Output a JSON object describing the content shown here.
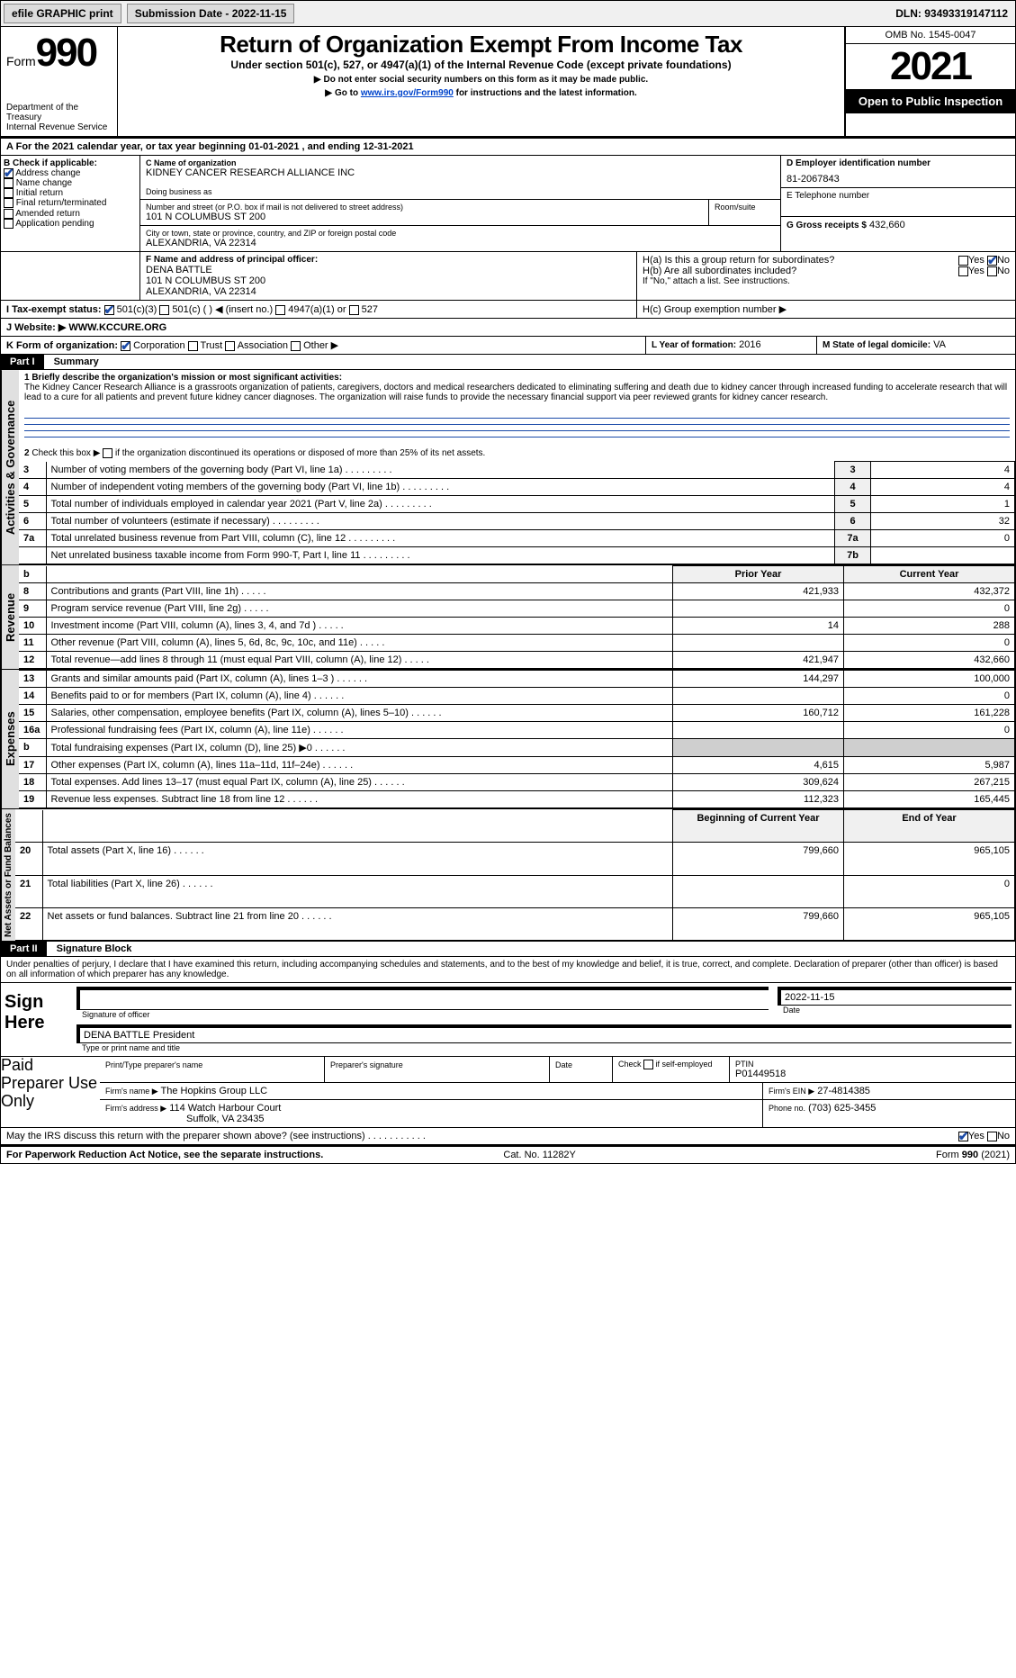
{
  "topbar": {
    "efile_lbl": "efile GRAPHIC print",
    "submission_lbl": "Submission Date - 2022-11-15",
    "dln_lbl": "DLN: 93493319147112"
  },
  "header": {
    "form_word": "Form",
    "form_num": "990",
    "dept": "Department of the Treasury",
    "irs": "Internal Revenue Service",
    "title": "Return of Organization Exempt From Income Tax",
    "subtitle": "Under section 501(c), 527, or 4947(a)(1) of the Internal Revenue Code (except private foundations)",
    "note1": "Do not enter social security numbers on this form as it may be made public.",
    "note2_pre": "Go to ",
    "note2_link": "www.irs.gov/Form990",
    "note2_post": " for instructions and the latest information.",
    "omb": "OMB No. 1545-0047",
    "year": "2021",
    "open": "Open to Public Inspection"
  },
  "lineA": {
    "text": "For the 2021 calendar year, or tax year beginning 01-01-2021   , and ending 12-31-2021"
  },
  "blockB": {
    "lbl": "B Check if applicable:",
    "items": [
      "Address change",
      "Name change",
      "Initial return",
      "Final return/terminated",
      "Amended return",
      "Application pending"
    ],
    "checked": [
      true,
      false,
      false,
      false,
      false,
      false
    ]
  },
  "blockC": {
    "name_lbl": "C Name of organization",
    "name": "KIDNEY CANCER RESEARCH ALLIANCE INC",
    "dba_lbl": "Doing business as",
    "dba": "",
    "street_lbl": "Number and street (or P.O. box if mail is not delivered to street address)",
    "suite_lbl": "Room/suite",
    "street": "101 N COLUMBUS ST 200",
    "city_lbl": "City or town, state or province, country, and ZIP or foreign postal code",
    "city": "ALEXANDRIA, VA  22314"
  },
  "blockD": {
    "lbl": "D Employer identification number",
    "val": "81-2067843"
  },
  "blockE": {
    "lbl": "E Telephone number",
    "val": ""
  },
  "blockG": {
    "lbl": "G Gross receipts $",
    "val": "432,660"
  },
  "blockF": {
    "lbl": "F  Name and address of principal officer:",
    "name": "DENA BATTLE",
    "addr1": "101 N COLUMBUS ST 200",
    "addr2": "ALEXANDRIA, VA  22314"
  },
  "blockH": {
    "a_lbl": "H(a)  Is this a group return for subordinates?",
    "b_lbl": "H(b)  Are all subordinates included?",
    "b_note": "If \"No,\" attach a list. See instructions.",
    "c_lbl": "H(c)  Group exemption number ▶",
    "yes": "Yes",
    "no": "No",
    "a_checked": "no"
  },
  "blockI": {
    "lbl": "I  Tax-exempt status:",
    "opts": [
      "501(c)(3)",
      "501(c) (  ) ◀ (insert no.)",
      "4947(a)(1) or",
      "527"
    ],
    "checked": 0
  },
  "blockJ": {
    "lbl": "J  Website: ▶",
    "val": "WWW.KCCURE.ORG"
  },
  "blockK": {
    "lbl": "K Form of organization:",
    "opts": [
      "Corporation",
      "Trust",
      "Association",
      "Other ▶"
    ],
    "checked": 0
  },
  "blockL": {
    "lbl": "L Year of formation:",
    "val": "2016"
  },
  "blockM": {
    "lbl": "M State of legal domicile:",
    "val": "VA"
  },
  "part1": {
    "label": "Part I",
    "title": "Summary"
  },
  "summary": {
    "q1_lbl": "1  Briefly describe the organization's mission or most significant activities:",
    "q1_text": "The Kidney Cancer Research Alliance is a grassroots organization of patients, caregivers, doctors and medical researchers dedicated to eliminating suffering and death due to kidney cancer through increased funding to accelerate research that will lead to a cure for all patients and prevent future kidney cancer diagnoses. The organization will raise funds to provide the necessary financial support via peer reviewed grants for kidney cancer research.",
    "q2_lbl": "2   Check this box ▶        if the organization discontinued its operations or disposed of more than 25% of its net assets."
  },
  "sidelabels": {
    "gov": "Activities & Governance",
    "rev": "Revenue",
    "exp": "Expenses",
    "net": "Net Assets or Fund Balances"
  },
  "govlines": [
    {
      "n": "3",
      "t": "Number of voting members of the governing body (Part VI, line 1a)",
      "c": "3",
      "v": "4"
    },
    {
      "n": "4",
      "t": "Number of independent voting members of the governing body (Part VI, line 1b)",
      "c": "4",
      "v": "4"
    },
    {
      "n": "5",
      "t": "Total number of individuals employed in calendar year 2021 (Part V, line 2a)",
      "c": "5",
      "v": "1"
    },
    {
      "n": "6",
      "t": "Total number of volunteers (estimate if necessary)",
      "c": "6",
      "v": "32"
    },
    {
      "n": "7a",
      "t": "Total unrelated business revenue from Part VIII, column (C), line 12",
      "c": "7a",
      "v": "0"
    },
    {
      "n": "",
      "t": "Net unrelated business taxable income from Form 990-T, Part I, line 11",
      "c": "7b",
      "v": ""
    }
  ],
  "cols": {
    "prior": "Prior Year",
    "current": "Current Year",
    "boy": "Beginning of Current Year",
    "eoy": "End of Year"
  },
  "revlines": [
    {
      "n": "b",
      "t": "",
      "p": "",
      "c": "",
      "shade": true
    },
    {
      "n": "8",
      "t": "Contributions and grants (Part VIII, line 1h)",
      "p": "421,933",
      "c": "432,372"
    },
    {
      "n": "9",
      "t": "Program service revenue (Part VIII, line 2g)",
      "p": "",
      "c": "0"
    },
    {
      "n": "10",
      "t": "Investment income (Part VIII, column (A), lines 3, 4, and 7d )",
      "p": "14",
      "c": "288"
    },
    {
      "n": "11",
      "t": "Other revenue (Part VIII, column (A), lines 5, 6d, 8c, 9c, 10c, and 11e)",
      "p": "",
      "c": "0"
    },
    {
      "n": "12",
      "t": "Total revenue—add lines 8 through 11 (must equal Part VIII, column (A), line 12)",
      "p": "421,947",
      "c": "432,660"
    }
  ],
  "explines": [
    {
      "n": "13",
      "t": "Grants and similar amounts paid (Part IX, column (A), lines 1–3 )",
      "p": "144,297",
      "c": "100,000"
    },
    {
      "n": "14",
      "t": "Benefits paid to or for members (Part IX, column (A), line 4)",
      "p": "",
      "c": "0"
    },
    {
      "n": "15",
      "t": "Salaries, other compensation, employee benefits (Part IX, column (A), lines 5–10)",
      "p": "160,712",
      "c": "161,228"
    },
    {
      "n": "16a",
      "t": "Professional fundraising fees (Part IX, column (A), line 11e)",
      "p": "",
      "c": "0"
    },
    {
      "n": "b",
      "t": "Total fundraising expenses (Part IX, column (D), line 25) ▶0",
      "p": "",
      "c": "",
      "shade": true
    },
    {
      "n": "17",
      "t": "Other expenses (Part IX, column (A), lines 11a–11d, 11f–24e)",
      "p": "4,615",
      "c": "5,987"
    },
    {
      "n": "18",
      "t": "Total expenses. Add lines 13–17 (must equal Part IX, column (A), line 25)",
      "p": "309,624",
      "c": "267,215"
    },
    {
      "n": "19",
      "t": "Revenue less expenses. Subtract line 18 from line 12",
      "p": "112,323",
      "c": "165,445"
    }
  ],
  "netlines": [
    {
      "n": "",
      "t": "",
      "p": "",
      "c": "",
      "header": true
    },
    {
      "n": "20",
      "t": "Total assets (Part X, line 16)",
      "p": "799,660",
      "c": "965,105"
    },
    {
      "n": "21",
      "t": "Total liabilities (Part X, line 26)",
      "p": "",
      "c": "0"
    },
    {
      "n": "22",
      "t": "Net assets or fund balances. Subtract line 21 from line 20",
      "p": "799,660",
      "c": "965,105"
    }
  ],
  "part2": {
    "label": "Part II",
    "title": "Signature Block"
  },
  "sig": {
    "decl": "Under penalties of perjury, I declare that I have examined this return, including accompanying schedules and statements, and to the best of my knowledge and belief, it is true, correct, and complete. Declaration of preparer (other than officer) is based on all information of which preparer has any knowledge.",
    "sign_here": "Sign Here",
    "sig_officer": "Signature of officer",
    "date_lbl": "Date",
    "date": "2022-11-15",
    "name_title_lbl": "Type or print name and title",
    "name_title": "DENA BATTLE  President",
    "paid": "Paid Preparer Use Only",
    "prt_name_lbl": "Print/Type preparer's name",
    "prep_sig_lbl": "Preparer's signature",
    "check_self": "Check         if self-employed",
    "ptin_lbl": "PTIN",
    "ptin": "P01449518",
    "firm_name_lbl": "Firm's name    ▶",
    "firm_name": "The Hopkins Group LLC",
    "firm_ein_lbl": "Firm's EIN ▶",
    "firm_ein": "27-4814385",
    "firm_addr_lbl": "Firm's address ▶",
    "firm_addr1": "114 Watch Harbour Court",
    "firm_addr2": "Suffolk, VA  23435",
    "phone_lbl": "Phone no.",
    "phone": "(703) 625-3455",
    "may_irs": "May the IRS discuss this return with the preparer shown above? (see instructions)",
    "may_yes": true
  },
  "footer": {
    "left": "For Paperwork Reduction Act Notice, see the separate instructions.",
    "mid": "Cat. No. 11282Y",
    "right": "Form 990 (2021)"
  },
  "colors": {
    "link": "#0044cc",
    "check": "#1a4aa8"
  }
}
